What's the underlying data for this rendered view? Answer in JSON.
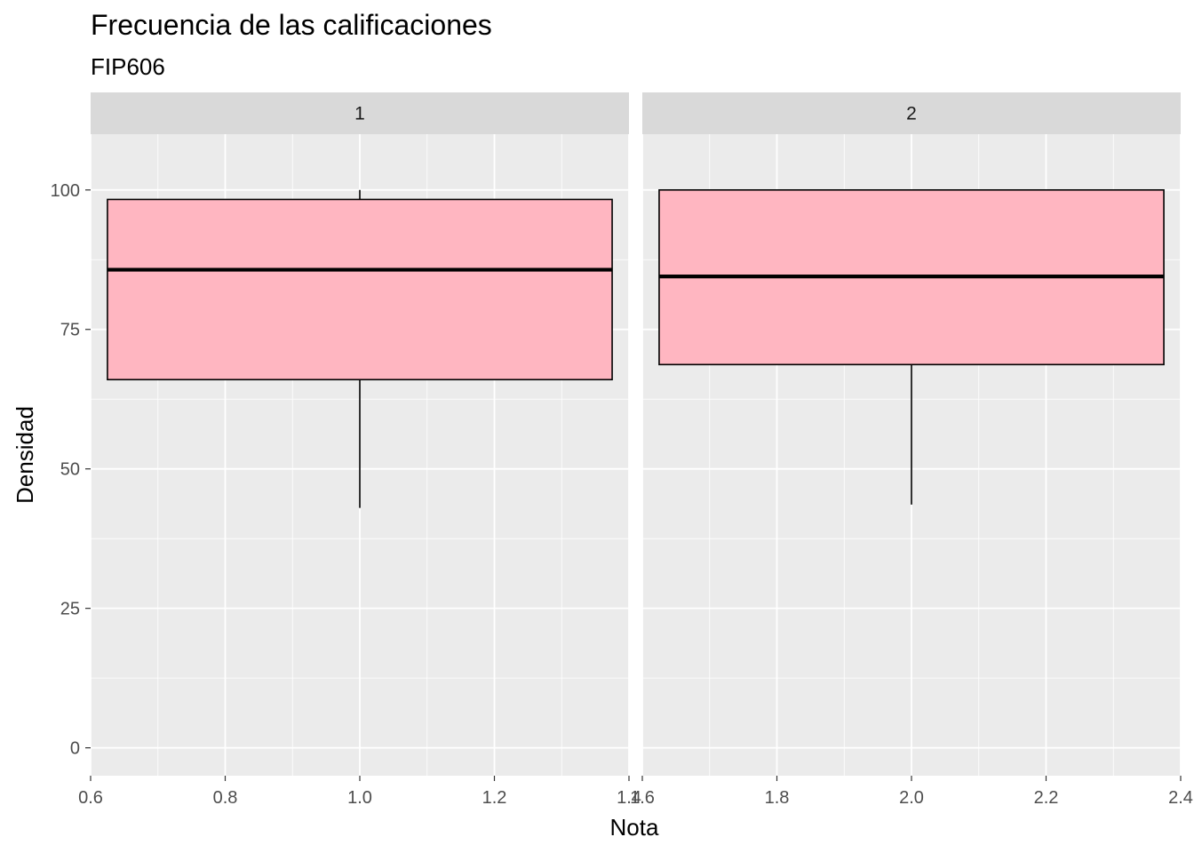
{
  "chart_data": {
    "type": "boxplot",
    "title": "Frecuencia de las calificaciones",
    "subtitle": "FIP606",
    "xlabel": "Nota",
    "ylabel": "Densidad",
    "ylim": [
      -5,
      110
    ],
    "y_ticks": [
      0,
      25,
      50,
      75,
      100
    ],
    "grid": true,
    "colors": {
      "box_fill": "#FFB6C1",
      "panel_bg": "#EBEBEB",
      "strip_bg": "#D9D9D9",
      "grid": "#FFFFFF",
      "outline": "#000000"
    },
    "facets": [
      {
        "strip_label": "1",
        "xlim": [
          0.6,
          1.4
        ],
        "x_ticks": [
          "0.6",
          "0.8",
          "1.0",
          "1.2",
          "1.4"
        ],
        "box": {
          "x": 1.0,
          "width": 0.75,
          "min": 43,
          "q1": 66,
          "median": 85.7,
          "q3": 98.3,
          "max": 100
        }
      },
      {
        "strip_label": "2",
        "xlim": [
          1.6,
          2.4
        ],
        "x_ticks": [
          "1.6",
          "1.8",
          "2.0",
          "2.2",
          "2.4"
        ],
        "box": {
          "x": 2.0,
          "width": 0.75,
          "min": 43.6,
          "q1": 68.7,
          "median": 84.5,
          "q3": 100,
          "max": 100
        }
      }
    ]
  }
}
